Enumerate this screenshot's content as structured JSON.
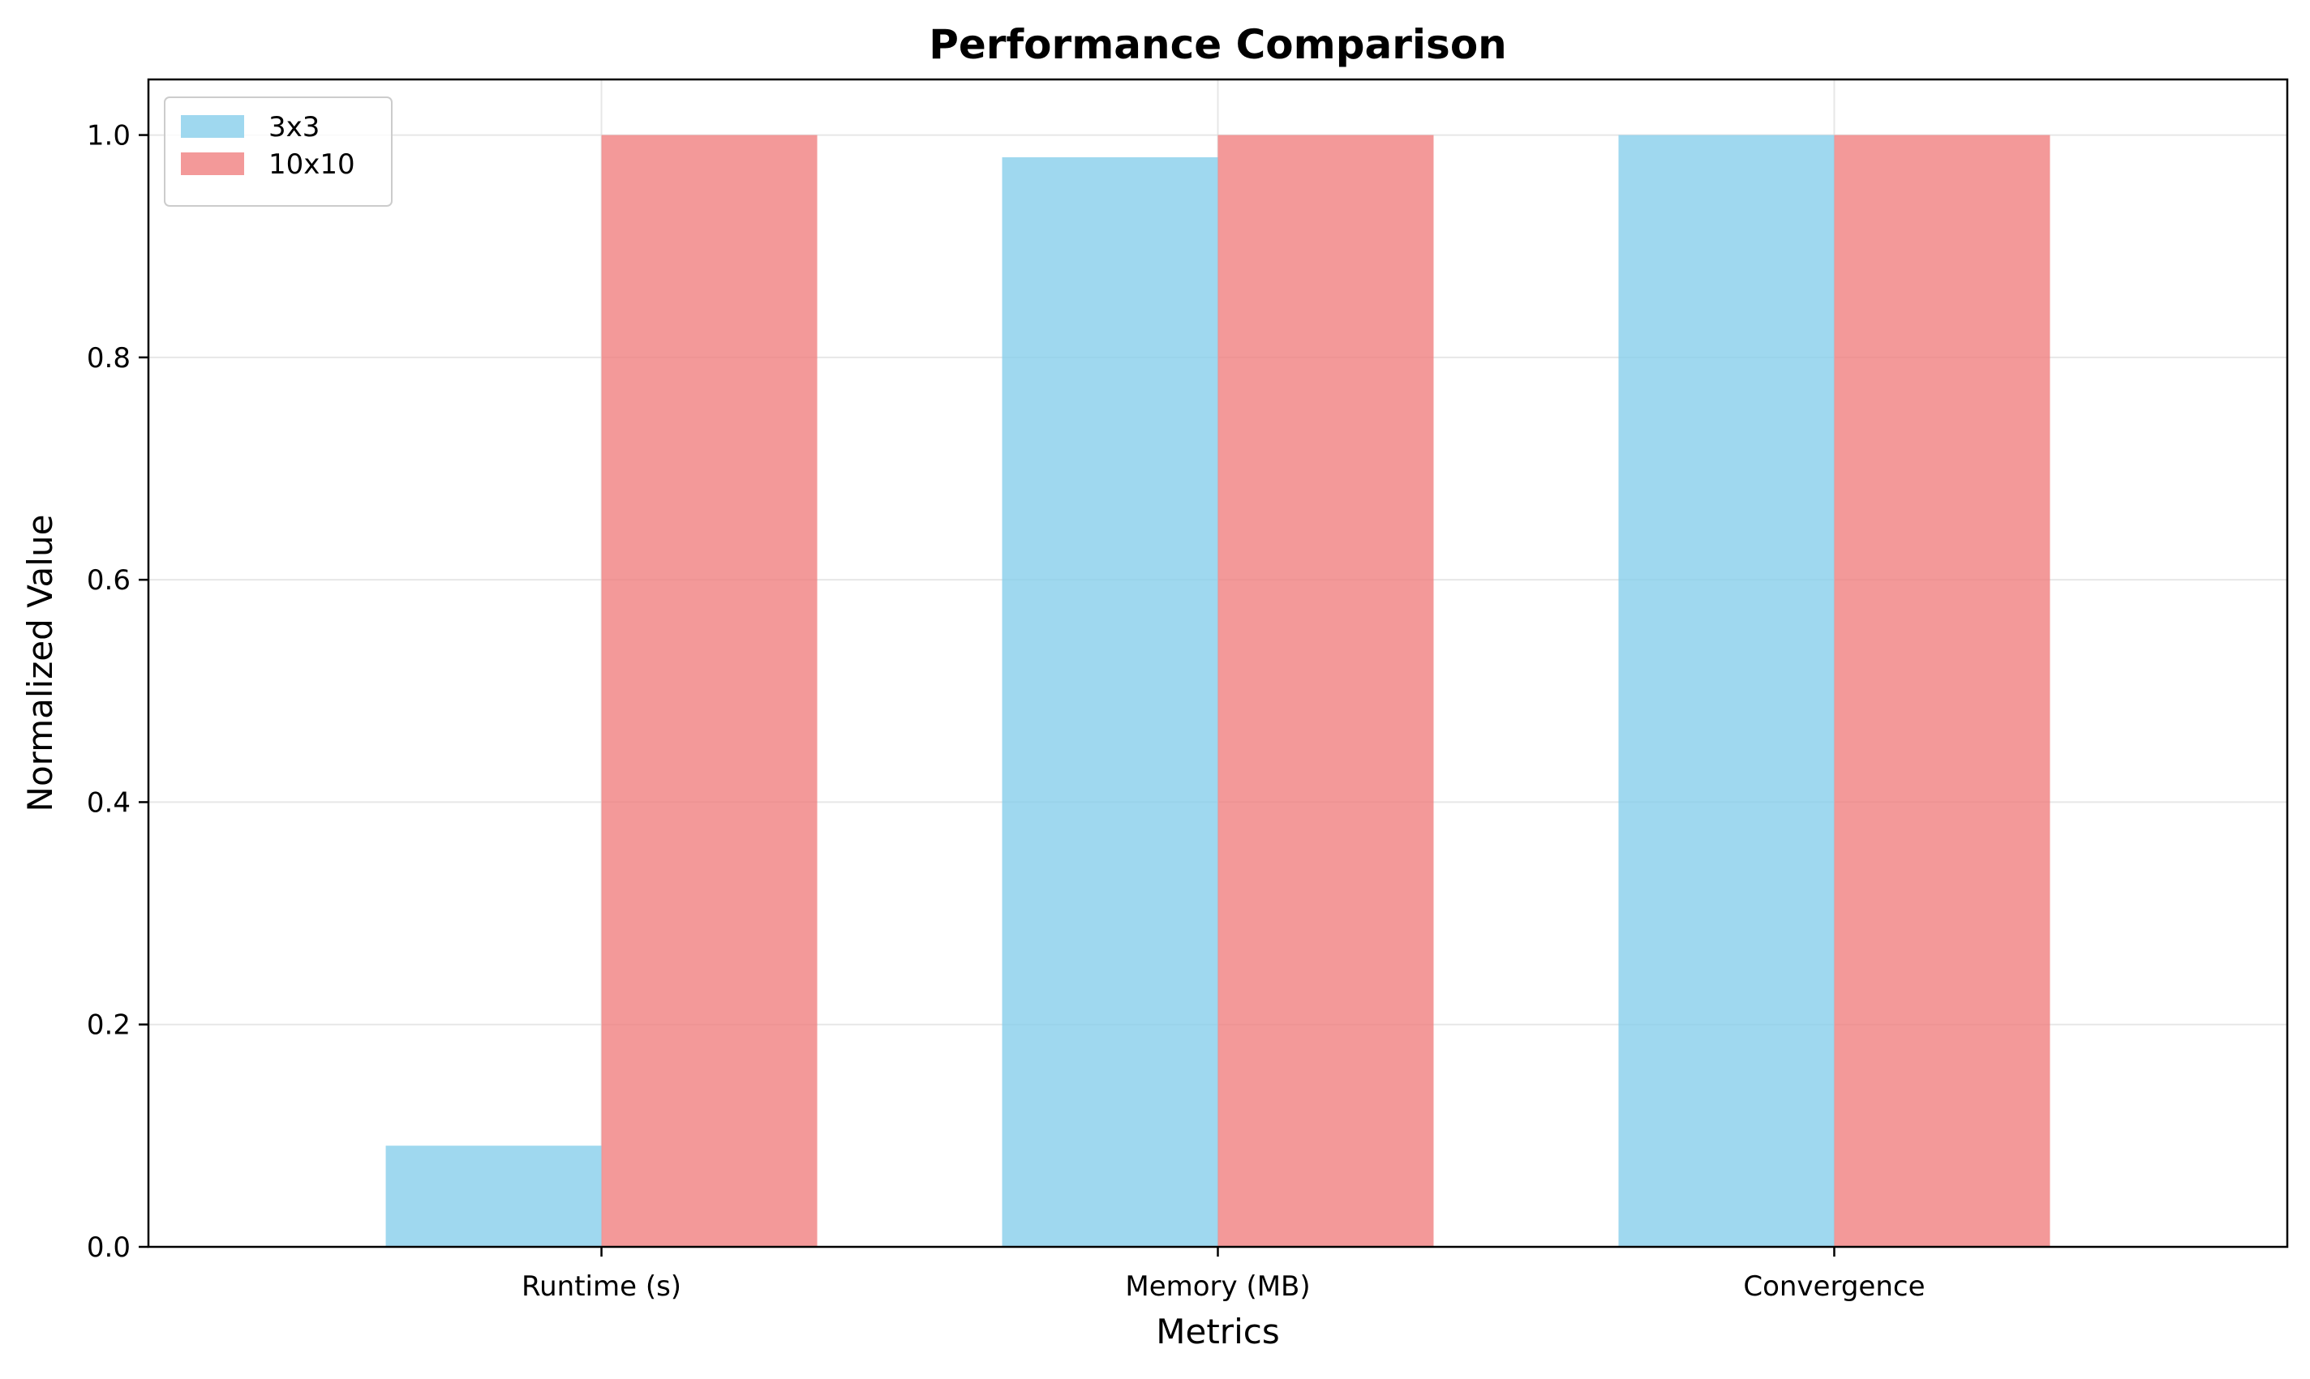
{
  "chart_data": {
    "type": "bar",
    "title": "Performance Comparison",
    "xlabel": "Metrics",
    "ylabel": "Normalized Value",
    "categories": [
      "Runtime (s)",
      "Memory (MB)",
      "Convergence"
    ],
    "series": [
      {
        "name": "3x3",
        "values": [
          0.091,
          0.98,
          1.0
        ],
        "color": "#87CEEB"
      },
      {
        "name": "10x10",
        "values": [
          1.0,
          1.0,
          1.0
        ],
        "color": "#F08080"
      }
    ],
    "ylim": [
      0,
      1.05
    ],
    "yticks": [
      "0.0",
      "0.2",
      "0.4",
      "0.6",
      "0.8",
      "1.0"
    ],
    "grid": true,
    "legend_position": "top-left"
  }
}
